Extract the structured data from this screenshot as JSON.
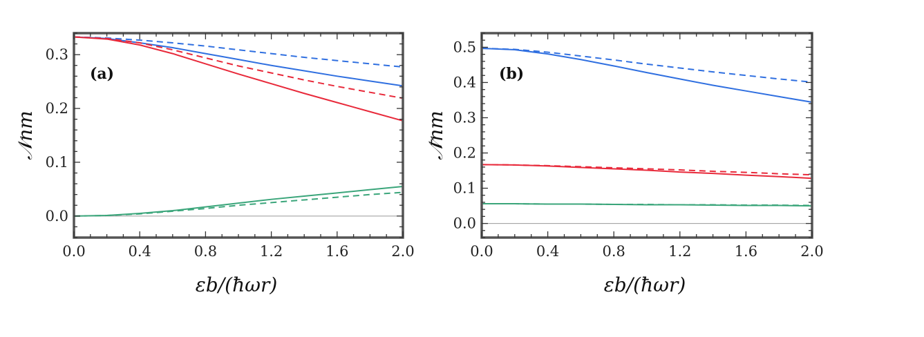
{
  "colors": {
    "blue": "#2f6fe0",
    "red": "#e8293a",
    "green": "#3aa57a",
    "frame": "#555555",
    "zero_line": "#999999"
  },
  "chart_data": [
    {
      "type": "line",
      "panel_label": "(a)",
      "xlabel": "εb/(ħωr)",
      "ylabel": "𝒩nm",
      "xlim": [
        0.0,
        2.0
      ],
      "ylim": [
        -0.04,
        0.34
      ],
      "x_ticks": [
        0.0,
        0.4,
        0.8,
        1.2,
        1.6,
        2.0
      ],
      "x_tick_labels": [
        "0.0",
        "0.4",
        "0.8",
        "1.2",
        "1.6",
        "2.0"
      ],
      "y_ticks": [
        0.0,
        0.1,
        0.2,
        0.3
      ],
      "y_tick_labels": [
        "0.0",
        "0.1",
        "0.2",
        "0.3"
      ],
      "x": [
        0.0,
        0.2,
        0.4,
        0.6,
        0.8,
        1.0,
        1.2,
        1.4,
        1.6,
        1.8,
        2.0
      ],
      "series": [
        {
          "color": "blue",
          "dashed": false,
          "values": [
            0.333,
            0.33,
            0.322,
            0.313,
            0.302,
            0.291,
            0.28,
            0.27,
            0.26,
            0.251,
            0.242
          ]
        },
        {
          "color": "blue",
          "dashed": true,
          "values": [
            0.333,
            0.331,
            0.327,
            0.322,
            0.316,
            0.309,
            0.302,
            0.295,
            0.289,
            0.283,
            0.277
          ]
        },
        {
          "color": "red",
          "dashed": false,
          "values": [
            0.333,
            0.329,
            0.318,
            0.302,
            0.283,
            0.264,
            0.246,
            0.228,
            0.211,
            0.194,
            0.177
          ]
        },
        {
          "color": "red",
          "dashed": true,
          "values": [
            0.333,
            0.33,
            0.322,
            0.309,
            0.294,
            0.279,
            0.266,
            0.253,
            0.241,
            0.23,
            0.219
          ]
        },
        {
          "color": "green",
          "dashed": false,
          "values": [
            0.0,
            0.001,
            0.005,
            0.01,
            0.017,
            0.024,
            0.031,
            0.037,
            0.043,
            0.049,
            0.055
          ]
        },
        {
          "color": "green",
          "dashed": true,
          "values": [
            0.0,
            0.001,
            0.004,
            0.009,
            0.014,
            0.02,
            0.025,
            0.03,
            0.035,
            0.04,
            0.044
          ]
        }
      ]
    },
    {
      "type": "line",
      "panel_label": "(b)",
      "xlabel": "εb/(ħωr)",
      "ylabel": "𝒩̄nm",
      "xlim": [
        0.0,
        2.0
      ],
      "ylim": [
        -0.04,
        0.54
      ],
      "x_ticks": [
        0.0,
        0.4,
        0.8,
        1.2,
        1.6,
        2.0
      ],
      "x_tick_labels": [
        "0.0",
        "0.4",
        "0.8",
        "1.2",
        "1.6",
        "2.0"
      ],
      "y_ticks": [
        0.0,
        0.1,
        0.2,
        0.3,
        0.4,
        0.5
      ],
      "y_tick_labels": [
        "0.0",
        "0.1",
        "0.2",
        "0.3",
        "0.4",
        "0.5"
      ],
      "x": [
        0.0,
        0.2,
        0.4,
        0.6,
        0.8,
        1.0,
        1.2,
        1.4,
        1.6,
        1.8,
        2.0
      ],
      "series": [
        {
          "color": "blue",
          "dashed": false,
          "values": [
            0.497,
            0.493,
            0.481,
            0.465,
            0.447,
            0.428,
            0.41,
            0.392,
            0.376,
            0.36,
            0.344
          ]
        },
        {
          "color": "blue",
          "dashed": true,
          "values": [
            0.497,
            0.494,
            0.486,
            0.475,
            0.464,
            0.452,
            0.441,
            0.43,
            0.42,
            0.41,
            0.401
          ]
        },
        {
          "color": "red",
          "dashed": false,
          "values": [
            0.167,
            0.166,
            0.163,
            0.159,
            0.155,
            0.151,
            0.146,
            0.142,
            0.137,
            0.133,
            0.128
          ]
        },
        {
          "color": "red",
          "dashed": true,
          "values": [
            0.167,
            0.166,
            0.164,
            0.161,
            0.158,
            0.155,
            0.152,
            0.148,
            0.145,
            0.141,
            0.138
          ]
        },
        {
          "color": "green",
          "dashed": false,
          "values": [
            0.056,
            0.056,
            0.055,
            0.055,
            0.054,
            0.053,
            0.053,
            0.052,
            0.051,
            0.051,
            0.05
          ]
        },
        {
          "color": "green",
          "dashed": true,
          "values": [
            0.056,
            0.056,
            0.055,
            0.055,
            0.054,
            0.054,
            0.053,
            0.053,
            0.052,
            0.052,
            0.051
          ]
        }
      ]
    }
  ]
}
